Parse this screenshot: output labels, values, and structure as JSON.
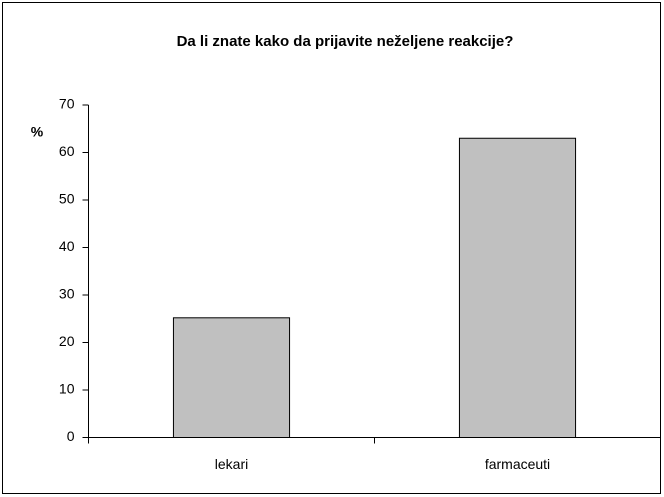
{
  "chart_data": {
    "type": "bar",
    "title": "Da li znate kako da prijavite neželjene reakcije?",
    "y_label": "%",
    "categories": [
      "lekari",
      "farmaceuti"
    ],
    "values": [
      25.2,
      63
    ],
    "color": "#c0c0c0",
    "ylim": [
      0,
      70
    ],
    "yticks": [
      0,
      10,
      20,
      30,
      40,
      50,
      60,
      70
    ],
    "grid": false
  }
}
